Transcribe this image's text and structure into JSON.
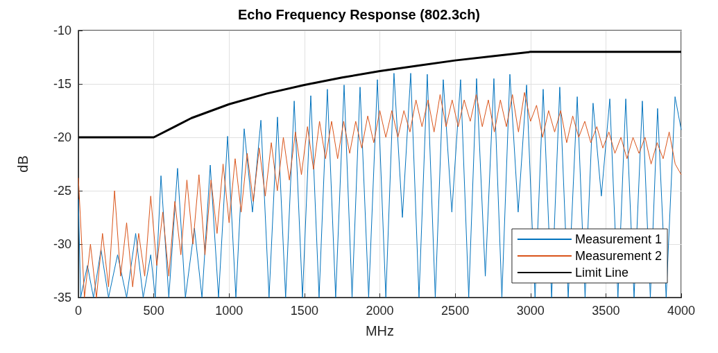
{
  "chart_data": {
    "type": "line",
    "title": "Echo Frequency Response (802.3ch)",
    "xlabel": "MHz",
    "ylabel": "dB",
    "xlim": [
      0,
      4000
    ],
    "xticks": [
      0,
      500,
      1000,
      1500,
      2000,
      2500,
      3000,
      3500,
      4000
    ],
    "ylim": [
      -35,
      -10
    ],
    "yticks": [
      -35,
      -30,
      -25,
      -20,
      -15,
      -10
    ],
    "grid": true,
    "legend": "bottom right",
    "series": [
      {
        "name": "Measurement 1",
        "color": "#0072bd",
        "x": [
          0,
          15,
          60,
          100,
          150,
          200,
          260,
          320,
          380,
          430,
          480,
          510,
          548,
          600,
          658,
          710,
          770,
          820,
          875,
          930,
          990,
          1045,
          1100,
          1155,
          1211,
          1265,
          1321,
          1375,
          1432,
          1487,
          1542,
          1597,
          1652,
          1707,
          1763,
          1816,
          1869,
          1926,
          1984,
          2040,
          2094,
          2150,
          2205,
          2260,
          2315,
          2368,
          2421,
          2478,
          2536,
          2590,
          2642,
          2700,
          2757,
          2810,
          2863,
          2918,
          2974,
          3030,
          3084,
          3140,
          3194,
          3250,
          3310,
          3362,
          3415,
          3470,
          3526,
          3580,
          3632,
          3687,
          3742,
          3795,
          3843,
          3900,
          3959,
          4000
        ],
        "values": [
          -25.8,
          -35,
          -32,
          -35,
          -30.5,
          -35,
          -31,
          -35,
          -29,
          -35,
          -31,
          -35,
          -23.6,
          -35,
          -22.9,
          -35,
          -28.5,
          -35,
          -22.6,
          -35,
          -19.9,
          -35,
          -19.2,
          -27,
          -18.4,
          -35,
          -18.1,
          -35,
          -16.6,
          -35,
          -16.1,
          -35,
          -15.5,
          -35,
          -15.1,
          -35,
          -15.3,
          -35,
          -14.6,
          -35,
          -14,
          -27.5,
          -14,
          -35,
          -14.1,
          -35,
          -14.6,
          -27,
          -14.6,
          -35,
          -14.5,
          -33,
          -14.5,
          -35,
          -14.1,
          -27,
          -15.1,
          -35,
          -15.5,
          -35,
          -15.3,
          -35,
          -16.2,
          -35,
          -16.8,
          -25.5,
          -16.4,
          -35,
          -16.4,
          -35,
          -16.6,
          -35,
          -17.3,
          -35,
          -16.2,
          -19.3
        ]
      },
      {
        "name": "Measurement 2",
        "color": "#d95319",
        "x": [
          0,
          40,
          80,
          120,
          160,
          200,
          240,
          280,
          320,
          360,
          400,
          440,
          480,
          520,
          560,
          600,
          640,
          680,
          720,
          760,
          800,
          840,
          880,
          920,
          960,
          1000,
          1040,
          1080,
          1120,
          1160,
          1200,
          1240,
          1280,
          1320,
          1360,
          1400,
          1440,
          1480,
          1520,
          1560,
          1600,
          1640,
          1680,
          1720,
          1760,
          1800,
          1840,
          1880,
          1920,
          1960,
          2000,
          2040,
          2080,
          2120,
          2160,
          2200,
          2240,
          2280,
          2320,
          2360,
          2400,
          2440,
          2480,
          2520,
          2560,
          2600,
          2640,
          2680,
          2720,
          2760,
          2800,
          2840,
          2880,
          2920,
          2960,
          3000,
          3040,
          3080,
          3120,
          3160,
          3200,
          3240,
          3280,
          3320,
          3360,
          3400,
          3440,
          3480,
          3520,
          3560,
          3600,
          3640,
          3680,
          3720,
          3760,
          3800,
          3840,
          3880,
          3920,
          3960,
          4000
        ],
        "values": [
          -23.8,
          -35,
          -30,
          -35,
          -29,
          -34,
          -25,
          -33,
          -28,
          -34,
          -29,
          -33,
          -25.5,
          -32,
          -27,
          -33,
          -26,
          -31,
          -24,
          -30,
          -23.5,
          -31,
          -24,
          -29,
          -22.5,
          -28,
          -22,
          -27,
          -21.5,
          -26,
          -21,
          -25.5,
          -20.5,
          -25,
          -20,
          -24,
          -19.5,
          -23.5,
          -19,
          -23,
          -18.5,
          -22,
          -18.5,
          -22,
          -18.5,
          -21.5,
          -18.5,
          -21,
          -18,
          -20.5,
          -17.5,
          -20,
          -17.5,
          -20,
          -17.5,
          -19.5,
          -16.5,
          -19,
          -16.5,
          -19.5,
          -16,
          -19,
          -16.5,
          -19,
          -16.5,
          -18.5,
          -16,
          -19,
          -16.5,
          -19.5,
          -16.5,
          -19,
          -16,
          -19.5,
          -15.8,
          -18.5,
          -17,
          -20,
          -17.5,
          -19.5,
          -17.5,
          -20.5,
          -18,
          -20,
          -18.5,
          -20.5,
          -19,
          -21,
          -19.5,
          -21.5,
          -20,
          -22,
          -20,
          -21.5,
          -20,
          -22.5,
          -20.5,
          -22,
          -19.5,
          -22.5,
          -23.5
        ]
      },
      {
        "name": "Limit Line",
        "color": "#000000",
        "x": [
          0,
          500,
          750,
          1000,
          1250,
          1500,
          1750,
          2000,
          2250,
          2500,
          2750,
          3000,
          4000
        ],
        "values": [
          -20,
          -20,
          -18.2,
          -16.9,
          -15.9,
          -15.1,
          -14.4,
          -13.8,
          -13.3,
          -12.8,
          -12.4,
          -12,
          -12
        ]
      }
    ]
  }
}
